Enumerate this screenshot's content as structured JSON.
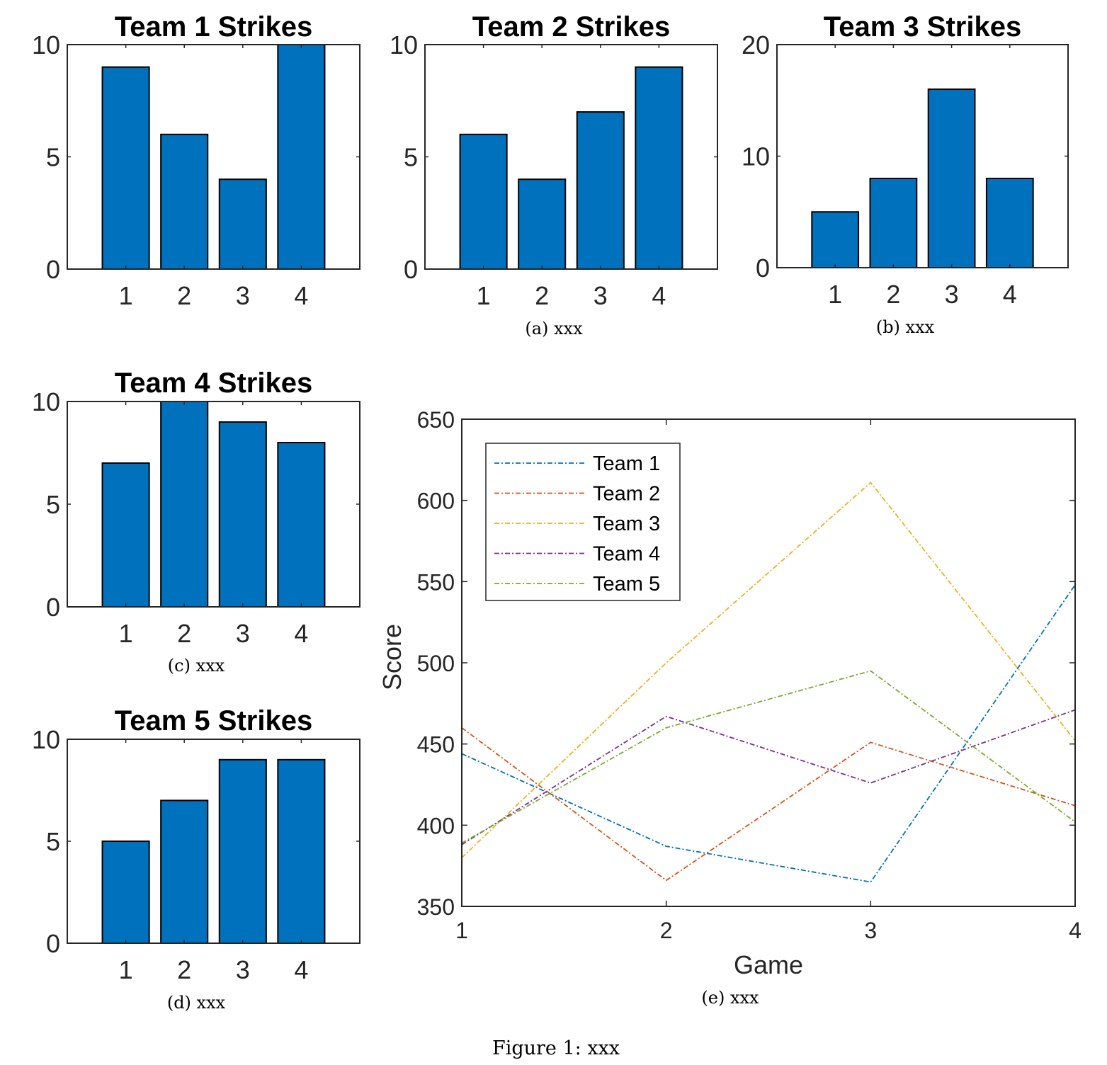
{
  "chart_data": [
    {
      "type": "bar",
      "title": "Team 1 Strikes",
      "categories": [
        "1",
        "2",
        "3",
        "4"
      ],
      "values": [
        9,
        6,
        4,
        10
      ],
      "ylim": [
        0,
        10
      ],
      "yticks": [
        "0",
        "5",
        "10"
      ],
      "bar_color": "#0072BD",
      "caption": ""
    },
    {
      "type": "bar",
      "title": "Team 2 Strikes",
      "categories": [
        "1",
        "2",
        "3",
        "4"
      ],
      "values": [
        6,
        4,
        7,
        9
      ],
      "ylim": [
        0,
        10
      ],
      "yticks": [
        "0",
        "5",
        "10"
      ],
      "bar_color": "#0072BD",
      "caption": "(a) xxx"
    },
    {
      "type": "bar",
      "title": "Team 3 Strikes",
      "categories": [
        "1",
        "2",
        "3",
        "4"
      ],
      "values": [
        5,
        8,
        16,
        8
      ],
      "ylim": [
        0,
        20
      ],
      "yticks": [
        "0",
        "10",
        "20"
      ],
      "bar_color": "#0072BD",
      "caption": "(b) xxx"
    },
    {
      "type": "bar",
      "title": "Team 4 Strikes",
      "categories": [
        "1",
        "2",
        "3",
        "4"
      ],
      "values": [
        7,
        10,
        9,
        8
      ],
      "ylim": [
        0,
        10
      ],
      "yticks": [
        "0",
        "5",
        "10"
      ],
      "bar_color": "#0072BD",
      "caption": "(c) xxx"
    },
    {
      "type": "bar",
      "title": "Team 5 Strikes",
      "categories": [
        "1",
        "2",
        "3",
        "4"
      ],
      "values": [
        5,
        7,
        9,
        9
      ],
      "ylim": [
        0,
        10
      ],
      "yticks": [
        "0",
        "5",
        "10"
      ],
      "bar_color": "#0072BD",
      "caption": "(d) xxx"
    },
    {
      "type": "line",
      "title": "",
      "xlabel": "Game",
      "ylabel": "Score",
      "x": [
        1,
        2,
        3,
        4
      ],
      "xlim": [
        1,
        4
      ],
      "ylim": [
        350,
        650
      ],
      "xticks": [
        "1",
        "2",
        "3",
        "4"
      ],
      "yticks": [
        "350",
        "400",
        "450",
        "500",
        "550",
        "600",
        "650"
      ],
      "legend_position": "top-left",
      "line_style": "dash-dot",
      "series": [
        {
          "name": "Team 1",
          "color": "#0072BD",
          "values": [
            444,
            387,
            365,
            548
          ]
        },
        {
          "name": "Team 2",
          "color": "#D95319",
          "values": [
            460,
            366,
            451,
            412
          ]
        },
        {
          "name": "Team 3",
          "color": "#EDB120",
          "values": [
            380,
            500,
            611,
            452
          ]
        },
        {
          "name": "Team 4",
          "color": "#7E2F8E",
          "values": [
            388,
            467,
            426,
            471
          ]
        },
        {
          "name": "Team 5",
          "color": "#77AC30",
          "values": [
            389,
            460,
            495,
            402
          ]
        }
      ],
      "caption": "(e) xxx"
    }
  ],
  "figure_caption": "Figure 1:  xxx"
}
